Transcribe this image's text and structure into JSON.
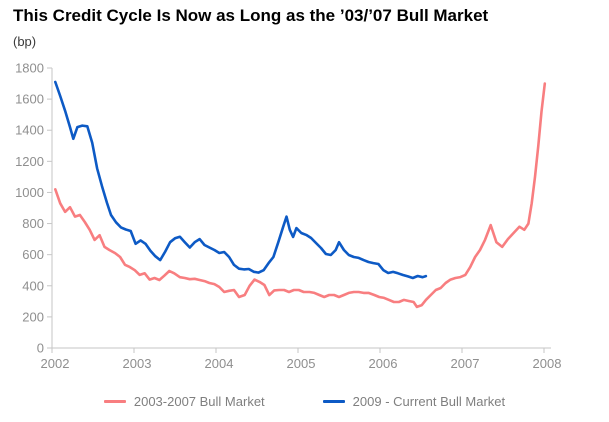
{
  "title": "This Credit Cycle Is Now as Long as the ’03/’07 Bull Market",
  "units_label": "(bp)",
  "colors": {
    "pink_series": "#F87E80",
    "blue_series": "#0D5AC5",
    "axis_line": "#C6C6C6",
    "tick_text": "#8F8F8F",
    "legend_text": "#7F7F7F",
    "title_text": "#000000"
  },
  "chart_data": {
    "type": "line",
    "title": "This Credit Cycle Is Now as Long as the ’03/’07 Bull Market",
    "xlabel": "",
    "ylabel": "(bp)",
    "ylim": [
      0,
      1800
    ],
    "yticks": [
      0,
      200,
      400,
      600,
      800,
      1000,
      1200,
      1400,
      1600,
      1800
    ],
    "xticks": [
      2002,
      2003,
      2004,
      2005,
      2006,
      2007,
      2008
    ],
    "grid": false,
    "legend_position": "bottom",
    "series": [
      {
        "name": "2003-2007 Bull Market",
        "color": "#F87E80",
        "x": [
          2002.04,
          2002.1,
          2002.16,
          2002.22,
          2002.28,
          2002.34,
          2002.4,
          2002.46,
          2002.52,
          2002.58,
          2002.64,
          2002.7,
          2002.77,
          2002.83,
          2002.89,
          2002.95,
          2003.01,
          2003.07,
          2003.13,
          2003.19,
          2003.25,
          2003.31,
          2003.37,
          2003.43,
          2003.49,
          2003.56,
          2003.62,
          2003.68,
          2003.74,
          2003.8,
          2003.86,
          2003.92,
          2003.98,
          2004.04,
          2004.1,
          2004.16,
          2004.22,
          2004.28,
          2004.35,
          2004.41,
          2004.47,
          2004.53,
          2004.59,
          2004.65,
          2004.71,
          2004.77,
          2004.83,
          2004.89,
          2004.95,
          2005.01,
          2005.07,
          2005.14,
          2005.2,
          2005.26,
          2005.32,
          2005.38,
          2005.44,
          2005.5,
          2005.56,
          2005.62,
          2005.68,
          2005.74,
          2005.8,
          2005.86,
          2005.93,
          2005.99,
          2006.05,
          2006.11,
          2006.17,
          2006.23,
          2006.29,
          2006.35,
          2006.41,
          2006.45,
          2006.51,
          2006.56,
          2006.62,
          2006.68,
          2006.74,
          2006.8,
          2006.86,
          2006.92,
          2006.98,
          2007.04,
          2007.1,
          2007.16,
          2007.22,
          2007.28,
          2007.35,
          2007.42,
          2007.49,
          2007.56,
          2007.63,
          2007.7,
          2007.76,
          2007.81,
          2007.85,
          2007.89,
          2007.93,
          2007.97,
          2008.01
        ],
        "y": [
          1020,
          930,
          875,
          905,
          845,
          855,
          810,
          760,
          695,
          725,
          650,
          630,
          610,
          585,
          535,
          520,
          500,
          470,
          480,
          440,
          450,
          437,
          465,
          495,
          480,
          455,
          450,
          442,
          445,
          437,
          430,
          418,
          411,
          392,
          360,
          368,
          373,
          328,
          341,
          400,
          440,
          425,
          405,
          340,
          370,
          373,
          373,
          360,
          373,
          373,
          360,
          360,
          354,
          341,
          328,
          341,
          341,
          328,
          341,
          354,
          360,
          360,
          354,
          354,
          341,
          328,
          322,
          309,
          296,
          296,
          309,
          302,
          296,
          264,
          276,
          309,
          341,
          373,
          386,
          418,
          440,
          450,
          456,
          470,
          520,
          585,
          630,
          695,
          790,
          680,
          650,
          700,
          740,
          780,
          760,
          800,
          930,
          1100,
          1300,
          1520,
          1700
        ]
      },
      {
        "name": "2009 - Current Bull Market",
        "color": "#0D5AC5",
        "x": [
          2002.04,
          2002.1,
          2002.16,
          2002.22,
          2002.26,
          2002.31,
          2002.37,
          2002.43,
          2002.49,
          2002.55,
          2002.61,
          2002.67,
          2002.72,
          2002.78,
          2002.84,
          2002.9,
          2002.96,
          2003.02,
          2003.08,
          2003.14,
          2003.2,
          2003.26,
          2003.32,
          2003.38,
          2003.44,
          2003.5,
          2003.56,
          2003.62,
          2003.68,
          2003.74,
          2003.8,
          2003.86,
          2003.92,
          2003.98,
          2004.04,
          2004.1,
          2004.16,
          2004.22,
          2004.28,
          2004.34,
          2004.4,
          2004.46,
          2004.52,
          2004.58,
          2004.64,
          2004.7,
          2004.76,
          2004.82,
          2004.86,
          2004.9,
          2004.94,
          2004.98,
          2005.04,
          2005.1,
          2005.16,
          2005.22,
          2005.28,
          2005.34,
          2005.4,
          2005.46,
          2005.5,
          2005.56,
          2005.62,
          2005.68,
          2005.74,
          2005.8,
          2005.86,
          2005.92,
          2005.98,
          2006.04,
          2006.1,
          2006.16,
          2006.22,
          2006.28,
          2006.34,
          2006.4,
          2006.46,
          2006.52,
          2006.56
        ],
        "y": [
          1710,
          1620,
          1525,
          1420,
          1345,
          1420,
          1430,
          1425,
          1320,
          1155,
          1040,
          935,
          855,
          808,
          775,
          762,
          752,
          670,
          692,
          670,
          625,
          590,
          565,
          620,
          680,
          705,
          715,
          680,
          646,
          680,
          700,
          662,
          646,
          630,
          611,
          617,
          585,
          534,
          510,
          505,
          508,
          490,
          485,
          500,
          545,
          585,
          680,
          780,
          845,
          760,
          714,
          771,
          739,
          727,
          707,
          675,
          643,
          604,
          598,
          630,
          680,
          630,
          598,
          585,
          579,
          565,
          553,
          546,
          540,
          501,
          482,
          489,
          480,
          469,
          460,
          450,
          463,
          455,
          462
        ]
      }
    ]
  }
}
